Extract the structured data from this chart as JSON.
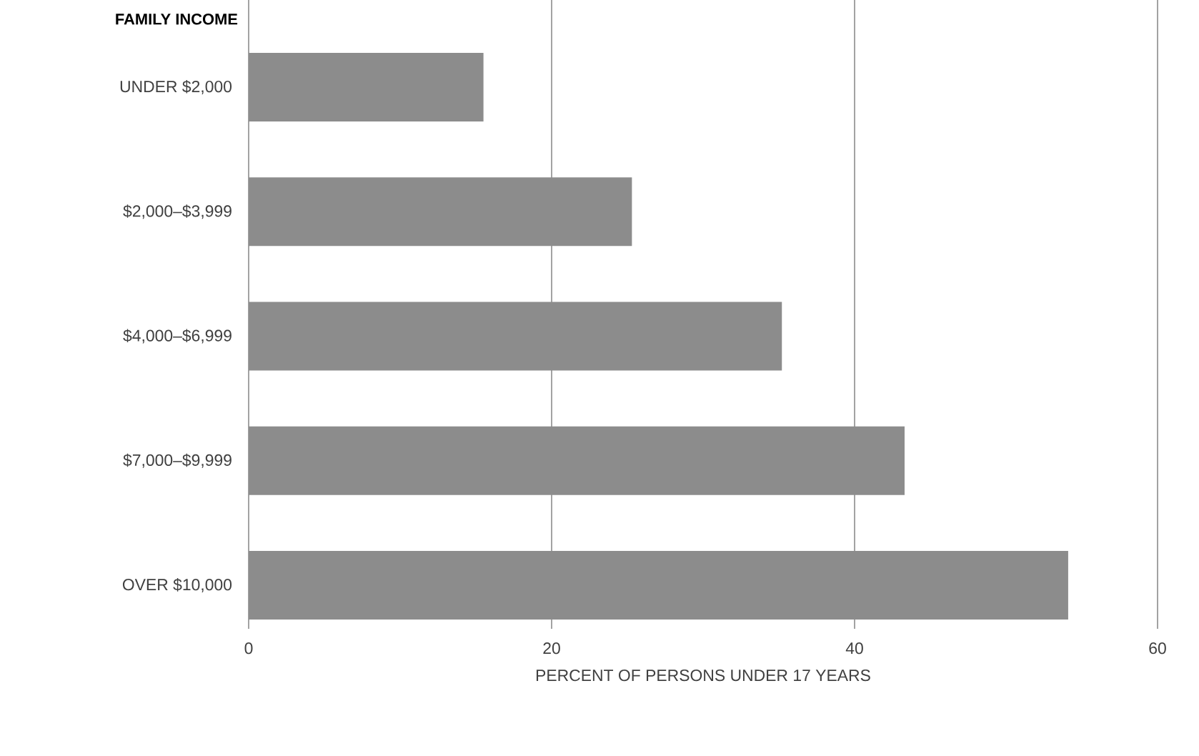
{
  "chart_data": {
    "type": "bar",
    "orientation": "horizontal",
    "ylabel": "FAMILY INCOME",
    "xlabel": "PERCENT OF PERSONS UNDER 17 YEARS",
    "categories": [
      "UNDER $2,000",
      "$2,000–$3,999",
      "$4,000–$6,999",
      "$7,000–$9,999",
      "OVER $10,000"
    ],
    "values": [
      15.5,
      25.3,
      35.2,
      43.3,
      54.1
    ],
    "color": "#8c8c8c",
    "xlim": [
      0,
      60
    ],
    "xticks": [
      0,
      20,
      40,
      60
    ],
    "grid": "x"
  }
}
